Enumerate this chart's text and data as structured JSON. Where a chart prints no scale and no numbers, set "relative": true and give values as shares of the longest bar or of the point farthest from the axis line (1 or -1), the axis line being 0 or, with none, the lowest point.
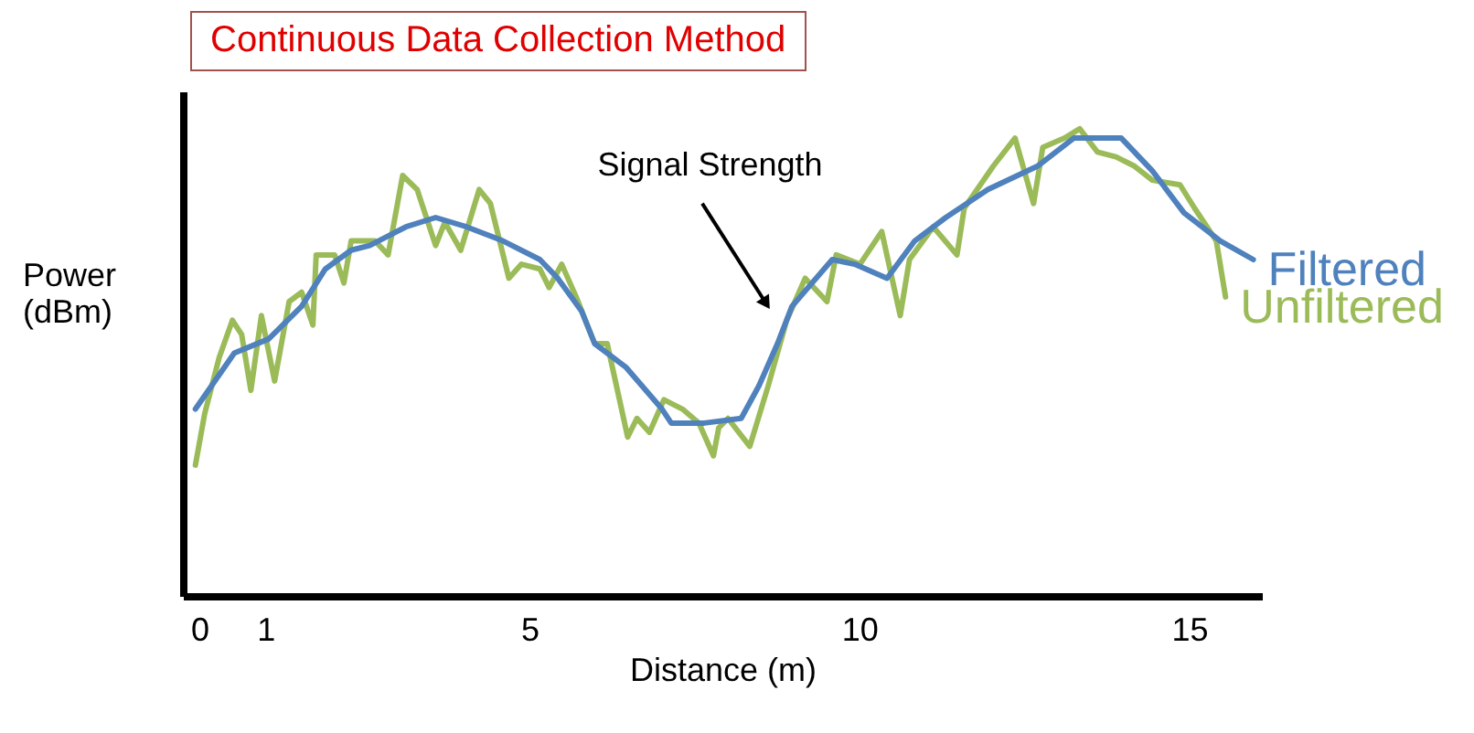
{
  "chart_data": {
    "type": "line",
    "title": "Continuous Data Collection Method",
    "xlabel": "Distance (m)",
    "ylabel": "Power (dBm)",
    "relative": true,
    "xlim": [
      -0.25,
      16.1
    ],
    "xticks": [
      0,
      1,
      5,
      10,
      15
    ],
    "grid": false,
    "legend": false,
    "marker": "none",
    "line_style": "solid",
    "annotations": [
      {
        "text": "Signal Strength",
        "x": 8.57,
        "y": 0.63
      }
    ],
    "series": [
      {
        "name": "Unfiltered",
        "color": "#9bbb59",
        "x": [
          -0.06,
          0.08,
          0.3,
          0.5,
          0.64,
          0.78,
          0.94,
          1.14,
          1.36,
          1.55,
          1.72,
          1.77,
          2.05,
          2.19,
          2.3,
          2.66,
          2.86,
          3.08,
          3.3,
          3.44,
          3.58,
          3.72,
          3.96,
          4.24,
          4.41,
          4.69,
          4.88,
          5.16,
          5.3,
          5.49,
          5.71,
          5.99,
          6.18,
          6.49,
          6.63,
          6.82,
          7.04,
          7.32,
          7.57,
          7.79,
          7.87,
          8.01,
          8.34,
          8.62,
          8.9,
          9.18,
          9.51,
          9.65,
          10.01,
          10.34,
          10.62,
          10.76,
          11.12,
          11.48,
          11.59,
          12.03,
          12.36,
          12.64,
          12.78,
          13.11,
          13.34,
          13.61,
          13.89,
          14.17,
          14.44,
          14.86,
          15.08,
          15.41,
          15.55
        ],
        "values": [
          0.28,
          0.39,
          0.51,
          0.59,
          0.56,
          0.44,
          0.6,
          0.46,
          0.63,
          0.65,
          0.58,
          0.73,
          0.73,
          0.67,
          0.76,
          0.76,
          0.73,
          0.9,
          0.87,
          0.81,
          0.75,
          0.8,
          0.74,
          0.87,
          0.84,
          0.68,
          0.71,
          0.7,
          0.66,
          0.71,
          0.64,
          0.54,
          0.54,
          0.34,
          0.38,
          0.35,
          0.42,
          0.4,
          0.37,
          0.3,
          0.36,
          0.38,
          0.32,
          0.45,
          0.59,
          0.68,
          0.63,
          0.73,
          0.71,
          0.78,
          0.6,
          0.72,
          0.79,
          0.73,
          0.83,
          0.92,
          0.98,
          0.84,
          0.96,
          0.98,
          1.0,
          0.95,
          0.94,
          0.92,
          0.89,
          0.88,
          0.83,
          0.76,
          0.64
        ]
      },
      {
        "name": "Filtered",
        "color": "#4f81bd",
        "x": [
          -0.06,
          0.53,
          1.05,
          1.55,
          1.91,
          2.3,
          2.58,
          3.13,
          3.58,
          4.05,
          4.6,
          5.16,
          5.43,
          5.79,
          5.99,
          6.46,
          7.01,
          7.15,
          7.65,
          8.21,
          8.48,
          8.76,
          8.98,
          9.59,
          9.93,
          10.42,
          10.84,
          11.31,
          11.95,
          12.7,
          13.25,
          13.97,
          14.44,
          14.92,
          15.47,
          15.97
        ],
        "values": [
          0.4,
          0.52,
          0.55,
          0.62,
          0.7,
          0.74,
          0.75,
          0.79,
          0.81,
          0.79,
          0.76,
          0.72,
          0.68,
          0.61,
          0.54,
          0.49,
          0.4,
          0.37,
          0.37,
          0.38,
          0.45,
          0.54,
          0.62,
          0.72,
          0.71,
          0.68,
          0.76,
          0.81,
          0.87,
          0.92,
          0.98,
          0.98,
          0.91,
          0.82,
          0.76,
          0.72
        ]
      }
    ]
  }
}
